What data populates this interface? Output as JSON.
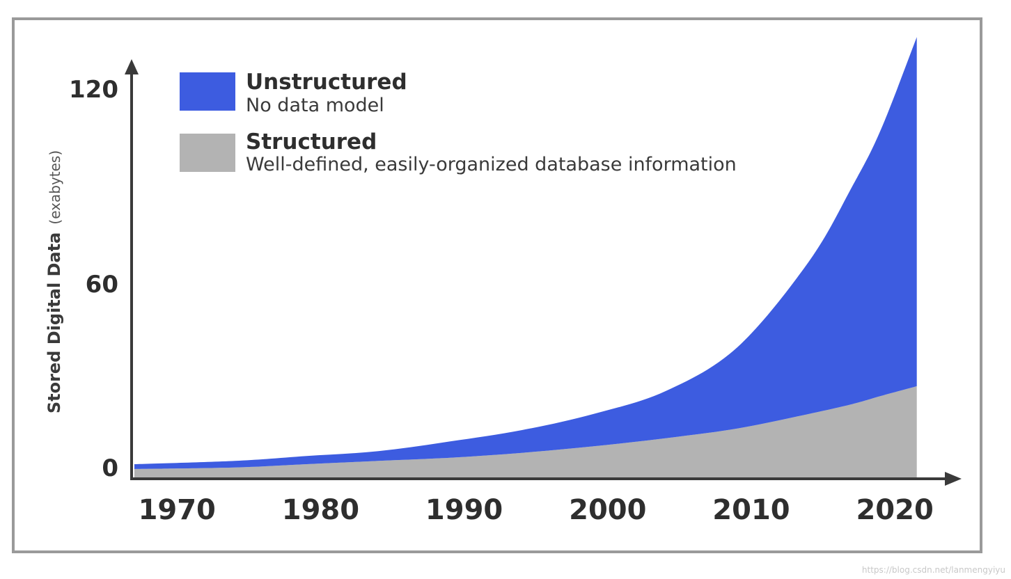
{
  "chart_data": {
    "type": "area",
    "stacked": true,
    "ylabel": "Stored Digital Data",
    "ylabel_unit": "(exabytes)",
    "ylim": [
      0,
      120
    ],
    "xlim": [
      1968,
      2023
    ],
    "yticks": [
      "0",
      "60",
      "120"
    ],
    "ytick_values": [
      0,
      60,
      120
    ],
    "xticks": [
      "1970",
      "1980",
      "1990",
      "2000",
      "2010",
      "2020"
    ],
    "xtick_values": [
      1970,
      1980,
      1990,
      2000,
      2010,
      2020
    ],
    "x": [
      1968,
      1975,
      1980,
      1985,
      1990,
      1995,
      2000,
      2005,
      2010,
      2015,
      2018,
      2020,
      2022.5
    ],
    "series": [
      {
        "name": "Structured",
        "description": "Well-defined, easily-organized database information",
        "color": "#b3b3b3",
        "values": [
          3,
          3.5,
          4.5,
          5.5,
          6.5,
          8,
          10,
          12.5,
          15.5,
          20,
          23,
          25.5,
          28.5
        ]
      },
      {
        "name": "Unstructured",
        "description": "No data model",
        "color": "#3d5ce0",
        "values": [
          1.5,
          2,
          2.5,
          3,
          5,
          7,
          10,
          14.5,
          25,
          47,
          67,
          82,
          107.5
        ]
      }
    ],
    "grid": false,
    "legend_position": "top-left"
  },
  "watermark": "https://blog.csdn.net/lanmengyiyu"
}
